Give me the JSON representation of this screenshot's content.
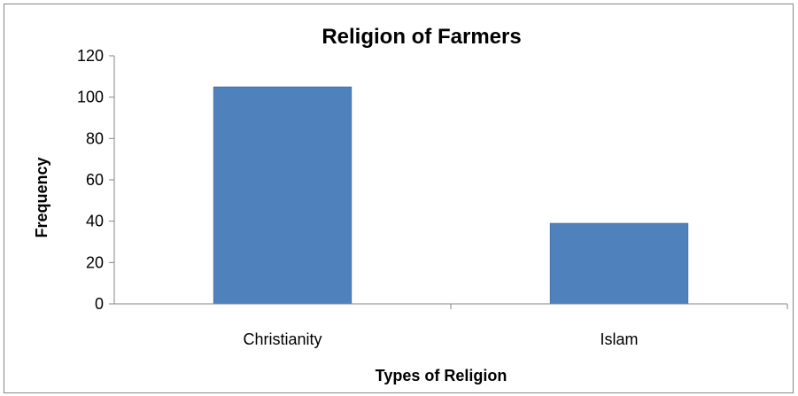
{
  "chart_data": {
    "type": "bar",
    "title": "Religion of Farmers",
    "xlabel": "Types of Religion",
    "ylabel": "Frequency",
    "categories": [
      "Christianity",
      "Islam"
    ],
    "values": [
      105,
      39
    ],
    "ylim": [
      0,
      120
    ],
    "yticks": [
      0,
      20,
      40,
      60,
      80,
      100,
      120
    ],
    "grid": false,
    "legend": "none",
    "bar_color": "#4F81BD",
    "bar_edge_color": "#2C5E94"
  }
}
